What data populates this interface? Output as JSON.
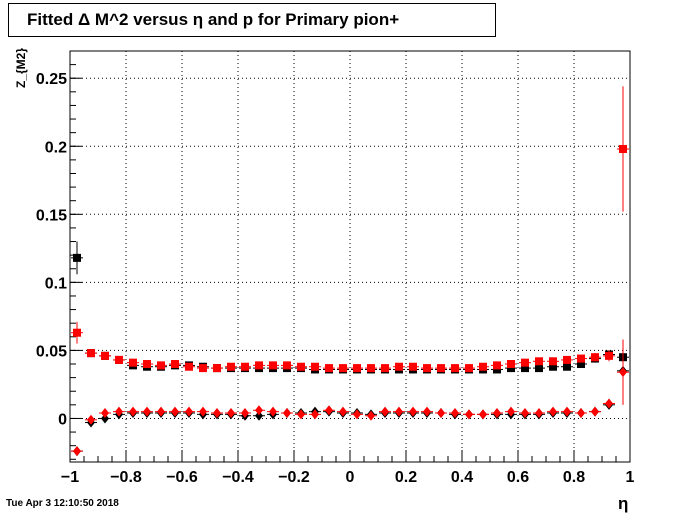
{
  "title": "Fitted Δ M^2 versus η and p for Primary pion+",
  "timestamp": "Tue Apr  3 12:10:50 2018",
  "chart_data": {
    "type": "scatter",
    "xlabel": "η",
    "ylabel": "Z_{M2}",
    "xlim": [
      -1,
      1
    ],
    "ylim": [
      -0.032,
      0.27
    ],
    "grid": true,
    "x_ticks": [
      "−1",
      "−0.8",
      "−0.6",
      "−0.4",
      "−0.2",
      "0",
      "0.2",
      "0.4",
      "0.6",
      "0.8",
      "1"
    ],
    "x_tick_values": [
      -1,
      -0.8,
      -0.6,
      -0.4,
      -0.2,
      0,
      0.2,
      0.4,
      0.6,
      0.8,
      1
    ],
    "y_ticks": [
      "0",
      "0.05",
      "0.1",
      "0.15",
      "0.2",
      "0.25"
    ],
    "y_tick_values": [
      0,
      0.05,
      0.1,
      0.15,
      0.2,
      0.25
    ],
    "x": [
      -0.975,
      -0.925,
      -0.875,
      -0.825,
      -0.775,
      -0.725,
      -0.675,
      -0.625,
      -0.575,
      -0.525,
      -0.475,
      -0.425,
      -0.375,
      -0.325,
      -0.275,
      -0.225,
      -0.175,
      -0.125,
      -0.075,
      -0.025,
      0.025,
      0.075,
      0.125,
      0.175,
      0.225,
      0.275,
      0.325,
      0.375,
      0.425,
      0.475,
      0.525,
      0.575,
      0.625,
      0.675,
      0.725,
      0.775,
      0.825,
      0.875,
      0.925,
      0.975
    ],
    "series": [
      {
        "marker": "square",
        "color": "#000000",
        "y": [
          0.118,
          0.048,
          0.046,
          0.043,
          0.039,
          0.038,
          0.038,
          0.039,
          0.039,
          0.038,
          0.037,
          0.037,
          0.037,
          0.037,
          0.037,
          0.037,
          0.037,
          0.036,
          0.036,
          0.036,
          0.036,
          0.036,
          0.036,
          0.036,
          0.036,
          0.036,
          0.036,
          0.036,
          0.036,
          0.036,
          0.036,
          0.037,
          0.037,
          0.037,
          0.038,
          0.038,
          0.04,
          0.044,
          0.047,
          0.045
        ],
        "err": [
          0.012,
          0.002,
          0.002,
          0.002,
          0.002,
          0.002,
          0.002,
          0.002,
          0.002,
          0.002,
          0.002,
          0.002,
          0.002,
          0.002,
          0.002,
          0.002,
          0.002,
          0.002,
          0.002,
          0.002,
          0.002,
          0.002,
          0.002,
          0.002,
          0.002,
          0.002,
          0.002,
          0.002,
          0.002,
          0.002,
          0.002,
          0.002,
          0.002,
          0.002,
          0.002,
          0.002,
          0.002,
          0.003,
          0.003,
          0.008
        ]
      },
      {
        "marker": "diamond",
        "color": "#000000",
        "y": [
          -0.024,
          -0.003,
          0.0,
          0.003,
          0.004,
          0.004,
          0.004,
          0.004,
          0.004,
          0.003,
          0.003,
          0.003,
          0.002,
          0.002,
          0.003,
          0.004,
          0.004,
          0.005,
          0.005,
          0.004,
          0.004,
          0.003,
          0.004,
          0.004,
          0.004,
          0.004,
          0.004,
          0.003,
          0.003,
          0.003,
          0.003,
          0.003,
          0.003,
          0.003,
          0.004,
          0.004,
          0.004,
          0.005,
          0.01,
          0.035
        ],
        "err": [
          0.003,
          0.002,
          0.001,
          0.001,
          0.001,
          0.001,
          0.001,
          0.001,
          0.001,
          0.001,
          0.001,
          0.001,
          0.001,
          0.001,
          0.001,
          0.001,
          0.001,
          0.001,
          0.001,
          0.001,
          0.001,
          0.001,
          0.001,
          0.001,
          0.001,
          0.001,
          0.001,
          0.001,
          0.001,
          0.001,
          0.001,
          0.001,
          0.001,
          0.001,
          0.001,
          0.001,
          0.001,
          0.002,
          0.003,
          0.01
        ]
      },
      {
        "marker": "square",
        "color": "#ff0000",
        "y": [
          0.063,
          0.048,
          0.046,
          0.043,
          0.041,
          0.04,
          0.039,
          0.04,
          0.038,
          0.037,
          0.037,
          0.038,
          0.038,
          0.039,
          0.039,
          0.039,
          0.038,
          0.038,
          0.037,
          0.037,
          0.037,
          0.037,
          0.037,
          0.038,
          0.038,
          0.037,
          0.037,
          0.037,
          0.037,
          0.038,
          0.039,
          0.04,
          0.041,
          0.042,
          0.042,
          0.043,
          0.044,
          0.045,
          0.046,
          0.198
        ],
        "err": [
          0.008,
          0.002,
          0.002,
          0.002,
          0.002,
          0.002,
          0.002,
          0.002,
          0.002,
          0.002,
          0.002,
          0.002,
          0.002,
          0.002,
          0.002,
          0.002,
          0.002,
          0.002,
          0.002,
          0.002,
          0.002,
          0.002,
          0.002,
          0.002,
          0.002,
          0.002,
          0.002,
          0.002,
          0.002,
          0.002,
          0.002,
          0.002,
          0.002,
          0.002,
          0.002,
          0.002,
          0.002,
          0.003,
          0.004,
          0.046
        ]
      },
      {
        "marker": "diamond",
        "color": "#ff0000",
        "y": [
          -0.024,
          -0.001,
          0.004,
          0.005,
          0.005,
          0.005,
          0.005,
          0.005,
          0.005,
          0.005,
          0.004,
          0.004,
          0.004,
          0.006,
          0.005,
          0.004,
          0.003,
          0.003,
          0.006,
          0.005,
          0.003,
          0.002,
          0.005,
          0.005,
          0.005,
          0.005,
          0.004,
          0.004,
          0.003,
          0.003,
          0.004,
          0.005,
          0.004,
          0.004,
          0.005,
          0.005,
          0.004,
          0.005,
          0.011,
          0.034
        ],
        "err": [
          0.003,
          0.002,
          0.001,
          0.001,
          0.001,
          0.001,
          0.001,
          0.001,
          0.001,
          0.001,
          0.001,
          0.001,
          0.001,
          0.001,
          0.001,
          0.001,
          0.001,
          0.001,
          0.001,
          0.001,
          0.001,
          0.001,
          0.001,
          0.001,
          0.001,
          0.001,
          0.001,
          0.001,
          0.001,
          0.001,
          0.001,
          0.001,
          0.001,
          0.001,
          0.001,
          0.001,
          0.001,
          0.002,
          0.003,
          0.024
        ]
      }
    ]
  }
}
